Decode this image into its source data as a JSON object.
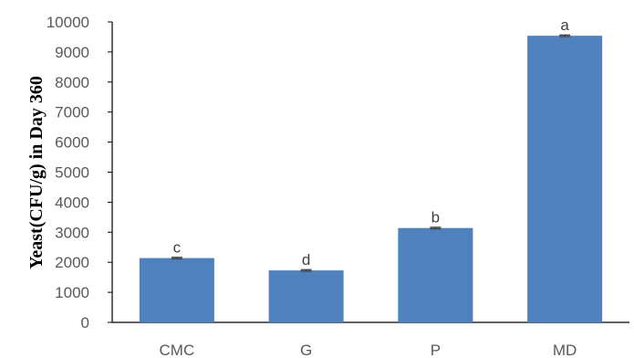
{
  "chart_data": {
    "type": "bar",
    "categories": [
      "CMC",
      "G",
      "P",
      "MD"
    ],
    "values": [
      2140,
      1730,
      3140,
      9540
    ],
    "errors": [
      25,
      25,
      25,
      25
    ],
    "data_labels": [
      "c",
      "d",
      "b",
      "a"
    ],
    "title": "",
    "xlabel": "",
    "ylabel": "Yeast(CFU/g) in Day 360",
    "ylim": [
      0,
      10000
    ],
    "yticks": [
      0,
      1000,
      2000,
      3000,
      4000,
      5000,
      6000,
      7000,
      8000,
      9000,
      10000
    ],
    "grid": false,
    "legend": "none",
    "colors": {
      "bar": "#4f81bd",
      "axis": "#000000",
      "error_bar": "#404040"
    }
  }
}
